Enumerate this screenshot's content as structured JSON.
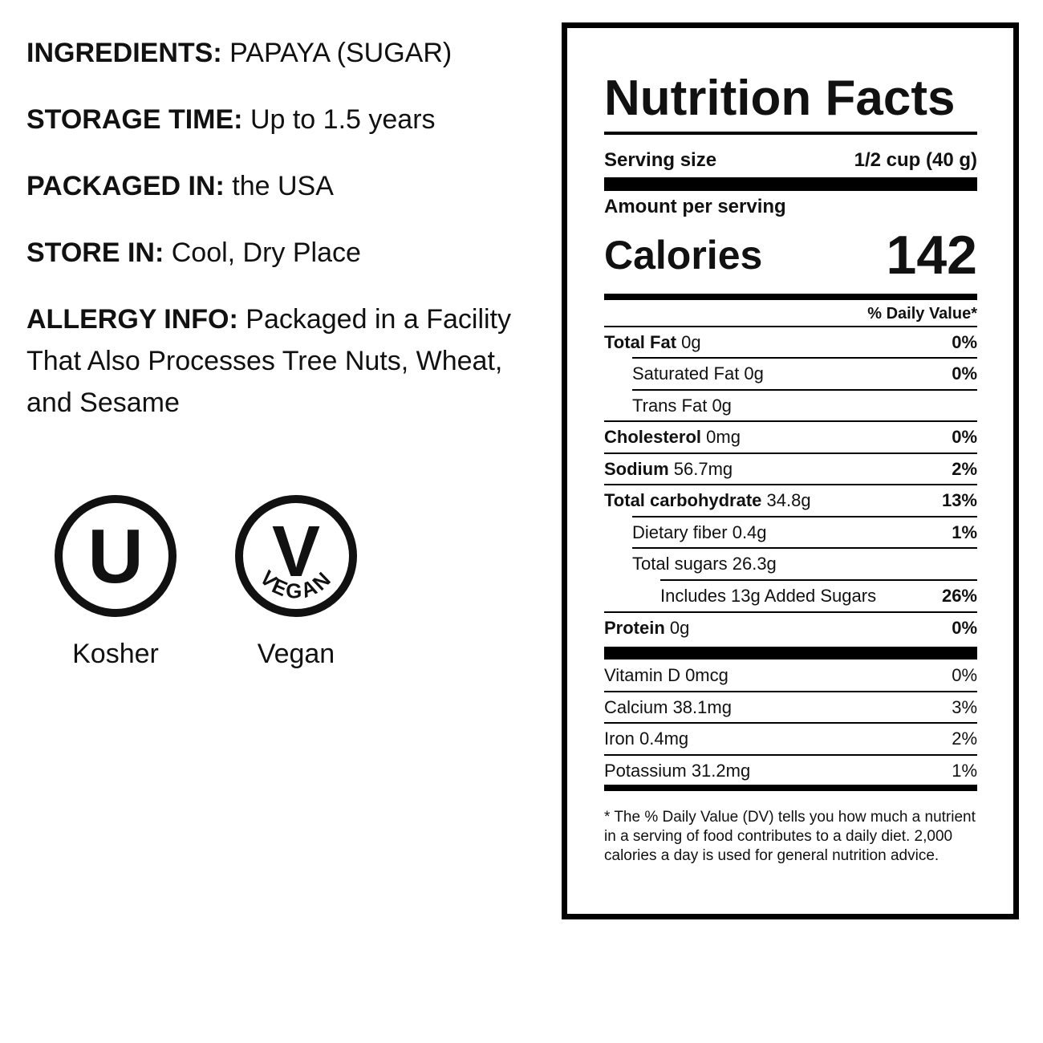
{
  "info": {
    "ingredients": {
      "label": "INGREDIENTS:",
      "value": "PAPAYA (SUGAR)"
    },
    "storage_time": {
      "label": "STORAGE TIME:",
      "value": "Up to 1.5 years"
    },
    "packaged_in": {
      "label": "PACKAGED IN:",
      "value": "the USA"
    },
    "store_in": {
      "label": "STORE IN:",
      "value": "Cool, Dry Place"
    },
    "allergy_info": {
      "label": "ALLERGY INFO:",
      "value": "Packaged in a Facility That Also Processes Tree Nuts, Wheat, and Sesame"
    }
  },
  "badges": {
    "kosher": {
      "symbol": "U",
      "label": "Kosher",
      "icon": "kosher-u-icon"
    },
    "vegan": {
      "symbol": "V",
      "ring_text": "VEGAN",
      "label": "Vegan",
      "icon": "vegan-v-icon"
    }
  },
  "nutrition": {
    "title": "Nutrition Facts",
    "serving_size_label": "Serving size",
    "serving_size_value": "1/2 cup (40 g)",
    "amount_per_serving": "Amount per serving",
    "calories_label": "Calories",
    "calories_value": "142",
    "daily_value_header": "% Daily Value*",
    "nutrients": [
      {
        "name": "Total Fat",
        "amount": "0g",
        "dv": "0%"
      },
      {
        "name": "Saturated Fat",
        "amount": "0g",
        "dv": "0%"
      },
      {
        "name": "Trans Fat",
        "amount": "0g",
        "dv": ""
      },
      {
        "name": "Cholesterol",
        "amount": "0mg",
        "dv": "0%"
      },
      {
        "name": "Sodium",
        "amount": "56.7mg",
        "dv": "2%"
      },
      {
        "name": "Total carbohydrate",
        "amount": "34.8g",
        "dv": "13%"
      },
      {
        "name": "Dietary fiber",
        "amount": "0.4g",
        "dv": "1%"
      },
      {
        "name": "Total sugars",
        "amount": "26.3g",
        "dv": ""
      },
      {
        "name": "Includes 13g Added Sugars",
        "amount": "",
        "dv": "26%"
      },
      {
        "name": "Protein",
        "amount": "0g",
        "dv": "0%"
      }
    ],
    "vitamins": [
      {
        "name": "Vitamin D",
        "amount": "0mcg",
        "dv": "0%"
      },
      {
        "name": "Calcium",
        "amount": "38.1mg",
        "dv": "3%"
      },
      {
        "name": "Iron",
        "amount": "0.4mg",
        "dv": "2%"
      },
      {
        "name": "Potassium",
        "amount": "31.2mg",
        "dv": "1%"
      }
    ],
    "footnote": "* The % Daily Value (DV) tells you how much a nutrient in a serving of food contributes to a daily diet. 2,000 calories a day is used for general nutrition advice."
  }
}
